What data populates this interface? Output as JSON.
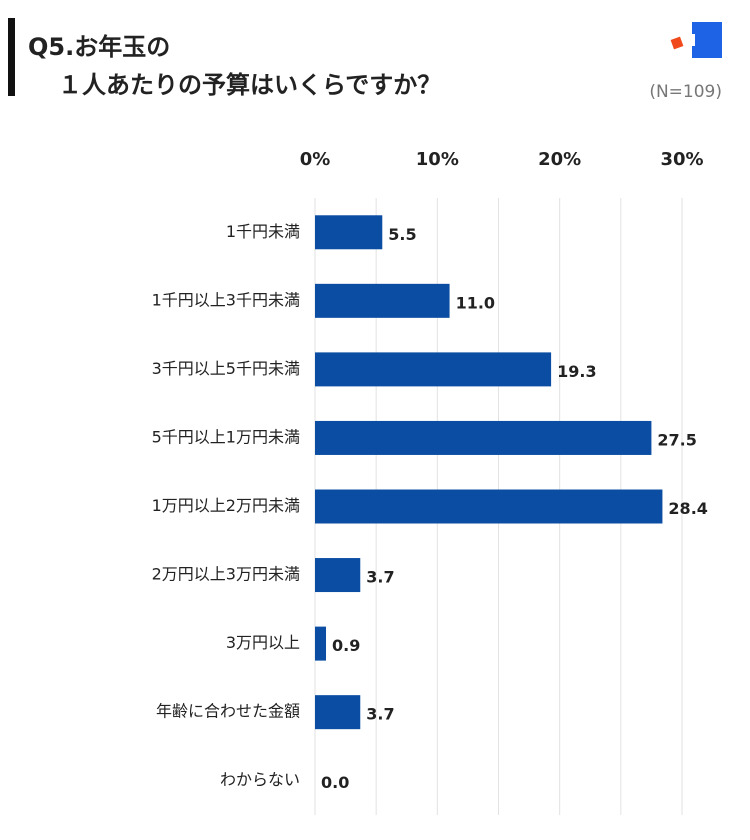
{
  "chart_data": {
    "type": "hbar",
    "title": [
      "Q5.お年玉の",
      "１人あたりの予算はいくらですか？"
    ],
    "subtitle": "(N=109)",
    "categories": [
      "1千円未満",
      "1千円以上3千円未満",
      "3千円以上5千円未満",
      "5千円以上1万円未満",
      "1万円以上2万円未満",
      "2万円以上3万円未満",
      "3万円以上",
      "年齢に合わせた金額",
      "わからない"
    ],
    "values": [
      5.5,
      11.0,
      19.3,
      27.5,
      28.4,
      3.7,
      0.9,
      3.7,
      0.0
    ],
    "value_labels": [
      "5.5",
      "11.0",
      "19.3",
      "27.5",
      "28.4",
      "3.7",
      "0.9",
      "3.7",
      "0.0"
    ],
    "color": "#0a4da2",
    "xlim": [
      0,
      30
    ],
    "xticks": [
      {
        "value": 0,
        "label": "0%"
      },
      {
        "value": 10,
        "label": "10%"
      },
      {
        "value": 20,
        "label": "20%"
      },
      {
        "value": 30,
        "label": "30%"
      }
    ],
    "minor_xticks": [
      5,
      15,
      25
    ],
    "grid": true
  }
}
